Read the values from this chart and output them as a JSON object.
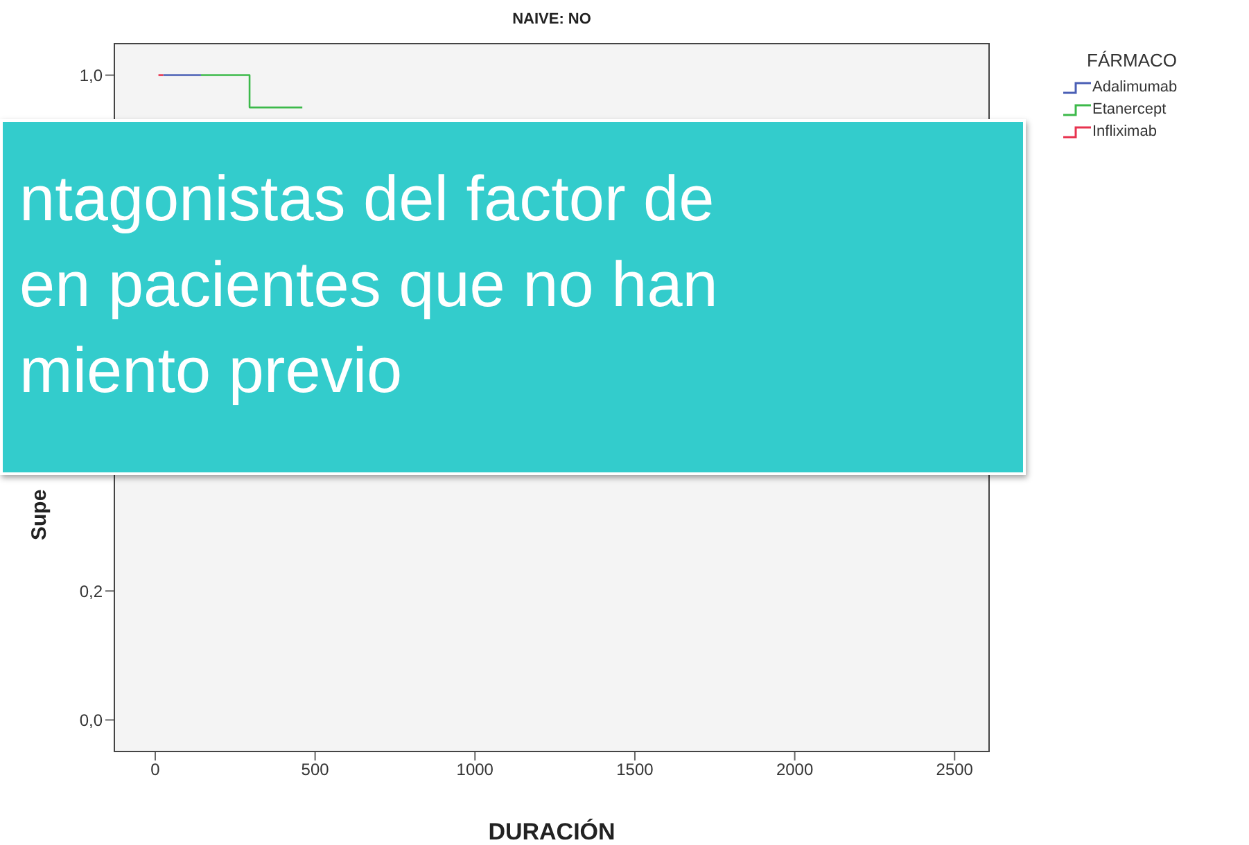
{
  "chart_data": {
    "type": "step",
    "title": "NAIVE: NO",
    "xlabel": "DURACIÓN",
    "ylabel": "Supe",
    "legend_title": "FÁRMACO",
    "legend": "right",
    "grid": false,
    "xlim": [
      -130,
      2610
    ],
    "xticks": [
      0,
      500,
      1000,
      1500,
      2000,
      2500
    ],
    "ylim": [
      -0.05,
      1.05
    ],
    "yticks": [
      {
        "value": 0,
        "label": "0,0"
      },
      {
        "value": 0.2,
        "label": "0,2"
      },
      {
        "value": 1,
        "label": "1,0"
      }
    ],
    "series": [
      {
        "name": "Adalimumab",
        "color": "#4a5fb5",
        "x": [
          25,
          143
        ],
        "values": [
          1,
          1
        ]
      },
      {
        "name": "Etanercept",
        "color": "#3cb94a",
        "x": [
          143,
          295,
          460
        ],
        "values": [
          1,
          0.95,
          0.95
        ]
      },
      {
        "name": "Infliximab",
        "color": "#e8334f",
        "x": [
          10,
          25
        ],
        "values": [
          1,
          1
        ]
      }
    ],
    "annotations": [
      "ntagonistas del factor de",
      "en pacientes que no han",
      "miento previo"
    ]
  }
}
